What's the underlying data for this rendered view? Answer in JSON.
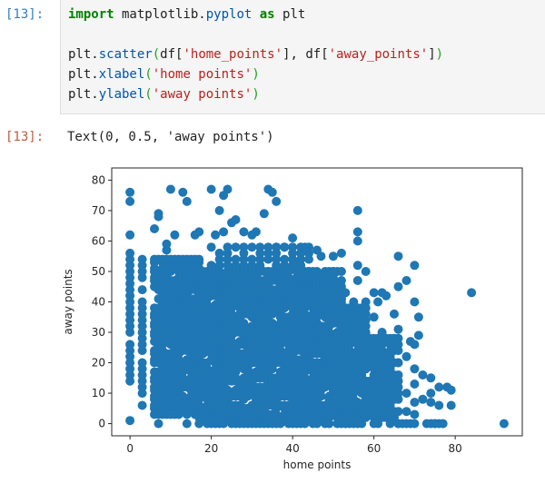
{
  "cell": {
    "input_prompt": "[13]:",
    "output_prompt": "[13]:",
    "code": [
      {
        "tokens": [
          {
            "t": "import",
            "c": "kw"
          },
          {
            "t": " matplotlib.",
            "c": ""
          },
          {
            "t": "pyplot",
            "c": "fn"
          },
          {
            "t": " ",
            "c": ""
          },
          {
            "t": "as",
            "c": "kw"
          },
          {
            "t": " plt",
            "c": ""
          }
        ]
      },
      {
        "tokens": []
      },
      {
        "tokens": [
          {
            "t": "plt.",
            "c": ""
          },
          {
            "t": "scatter",
            "c": "fn"
          },
          {
            "t": "(",
            "c": "par"
          },
          {
            "t": "df[",
            "c": ""
          },
          {
            "t": "'home_points'",
            "c": "str"
          },
          {
            "t": "], df[",
            "c": ""
          },
          {
            "t": "'away_points'",
            "c": "str"
          },
          {
            "t": "]",
            "c": ""
          },
          {
            "t": ")",
            "c": "par"
          }
        ]
      },
      {
        "tokens": [
          {
            "t": "plt.",
            "c": ""
          },
          {
            "t": "xlabel",
            "c": "fn"
          },
          {
            "t": "(",
            "c": "par"
          },
          {
            "t": "'home points'",
            "c": "str"
          },
          {
            "t": ")",
            "c": "par"
          }
        ]
      },
      {
        "tokens": [
          {
            "t": "plt.",
            "c": ""
          },
          {
            "t": "ylabel",
            "c": "fn"
          },
          {
            "t": "(",
            "c": "par"
          },
          {
            "t": "'away points'",
            "c": "str"
          },
          {
            "t": ")",
            "c": "par"
          }
        ]
      }
    ],
    "output_text": "Text(0, 0.5, 'away points')"
  },
  "chart_data": {
    "type": "scatter",
    "title": "",
    "xlabel": "home points",
    "ylabel": "away points",
    "xlim": [
      -4.5,
      96.5
    ],
    "ylim": [
      -4,
      84
    ],
    "xticks": [
      0,
      20,
      40,
      60,
      80
    ],
    "yticks": [
      0,
      10,
      20,
      30,
      40,
      50,
      60,
      70,
      80
    ],
    "grid": false,
    "legend": null,
    "color": "#1f77b4",
    "dense_blocks": [
      {
        "x": [
          0,
          0
        ],
        "y": [
          14,
          62
        ],
        "step": [
          1,
          2
        ]
      },
      {
        "x": [
          3,
          3
        ],
        "y": [
          6,
          55
        ],
        "step": [
          1,
          2
        ]
      },
      {
        "x": [
          6,
          17
        ],
        "y": [
          3,
          55
        ],
        "step": [
          1,
          1.5
        ]
      },
      {
        "x": [
          17,
          52
        ],
        "y": [
          0,
          50
        ],
        "step": [
          1,
          1.5
        ]
      },
      {
        "x": [
          20,
          45
        ],
        "y": [
          50,
          58
        ],
        "step": [
          2,
          2
        ]
      },
      {
        "x": [
          52,
          58
        ],
        "y": [
          0,
          40
        ],
        "step": [
          1,
          2
        ]
      },
      {
        "x": [
          58,
          66
        ],
        "y": [
          0,
          28
        ],
        "step": [
          1,
          2
        ]
      },
      {
        "x": [
          66,
          77
        ],
        "y": [
          0,
          0
        ],
        "step": [
          1,
          1
        ]
      },
      {
        "x": [
          58,
          64
        ],
        "y": [
          3,
          14
        ],
        "step": [
          1,
          2
        ]
      }
    ],
    "points": [
      [
        0,
        1
      ],
      [
        0,
        73
      ],
      [
        0,
        76
      ],
      [
        7,
        0
      ],
      [
        10,
        3
      ],
      [
        14,
        0
      ],
      [
        10,
        77
      ],
      [
        13,
        76
      ],
      [
        14,
        73
      ],
      [
        7,
        69
      ],
      [
        6,
        64
      ],
      [
        7,
        68
      ],
      [
        11,
        62
      ],
      [
        9,
        59
      ],
      [
        9,
        57
      ],
      [
        20,
        77
      ],
      [
        24,
        77
      ],
      [
        23,
        75
      ],
      [
        22,
        70
      ],
      [
        25,
        66
      ],
      [
        26,
        67
      ],
      [
        23,
        63
      ],
      [
        21,
        62
      ],
      [
        17,
        63
      ],
      [
        16,
        62
      ],
      [
        34,
        77
      ],
      [
        35,
        76
      ],
      [
        36,
        73
      ],
      [
        33,
        69
      ],
      [
        28,
        63
      ],
      [
        31,
        63
      ],
      [
        30,
        62
      ],
      [
        40,
        61
      ],
      [
        36,
        58
      ],
      [
        38,
        58
      ],
      [
        43,
        58
      ],
      [
        46,
        57
      ],
      [
        47,
        55
      ],
      [
        50,
        55
      ],
      [
        52,
        56
      ],
      [
        56,
        70
      ],
      [
        56,
        63
      ],
      [
        56,
        60
      ],
      [
        56,
        52
      ],
      [
        58,
        50
      ],
      [
        56,
        47
      ],
      [
        66,
        55
      ],
      [
        70,
        52
      ],
      [
        68,
        47
      ],
      [
        62,
        43
      ],
      [
        66,
        45
      ],
      [
        60,
        43
      ],
      [
        61,
        40
      ],
      [
        63,
        42
      ],
      [
        65,
        36
      ],
      [
        70,
        40
      ],
      [
        71,
        35
      ],
      [
        84,
        43
      ],
      [
        58,
        38
      ],
      [
        60,
        35
      ],
      [
        62,
        30
      ],
      [
        66,
        31
      ],
      [
        71,
        29
      ],
      [
        69,
        27
      ],
      [
        70,
        26
      ],
      [
        68,
        22
      ],
      [
        66,
        20
      ],
      [
        64,
        18
      ],
      [
        70,
        18
      ],
      [
        72,
        16
      ],
      [
        74,
        15
      ],
      [
        70,
        13
      ],
      [
        76,
        12
      ],
      [
        78,
        12
      ],
      [
        79,
        11
      ],
      [
        74,
        10
      ],
      [
        68,
        10
      ],
      [
        66,
        14
      ],
      [
        62,
        12
      ],
      [
        72,
        8
      ],
      [
        74,
        7
      ],
      [
        76,
        6
      ],
      [
        79,
        6
      ],
      [
        58,
        13
      ],
      [
        60,
        10
      ],
      [
        56,
        7
      ],
      [
        60,
        7
      ],
      [
        64,
        7
      ],
      [
        70,
        7
      ],
      [
        60,
        4
      ],
      [
        63,
        4
      ],
      [
        68,
        4
      ],
      [
        70,
        3
      ],
      [
        75,
        0
      ],
      [
        92,
        0
      ],
      [
        44,
        30
      ],
      [
        48,
        28
      ],
      [
        50,
        26
      ],
      [
        53,
        22
      ],
      [
        57,
        20
      ],
      [
        53,
        17
      ],
      [
        55,
        14
      ],
      [
        42,
        44
      ],
      [
        46,
        44
      ],
      [
        47,
        42
      ],
      [
        48,
        40
      ],
      [
        51,
        42
      ],
      [
        53,
        43
      ],
      [
        52,
        41
      ],
      [
        39,
        50
      ],
      [
        41,
        52
      ],
      [
        44,
        48
      ],
      [
        45,
        50
      ],
      [
        49,
        48
      ],
      [
        50,
        50
      ],
      [
        46,
        46
      ]
    ]
  }
}
